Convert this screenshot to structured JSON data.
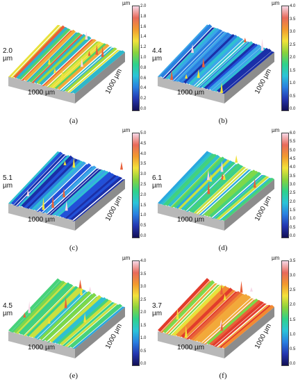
{
  "panels": [
    {
      "caption": "(a)",
      "z_label": "2.0\nµm",
      "x_label": "1000 µm",
      "y_label": "1000 µm",
      "unit": "µm",
      "scale_ticks": [
        "2.0",
        "1.8",
        "1.6",
        "1.4",
        "1.2",
        "1.0",
        "0.8",
        "0.6",
        "0.4",
        "0.2",
        "0.0"
      ],
      "palette": "greenyellow-red"
    },
    {
      "caption": "(b)",
      "z_label": "4.4\nµm",
      "x_label": "1000 µm",
      "y_label": "1000 µm",
      "unit": "µm",
      "scale_ticks": [
        "4.0",
        "3.5",
        "3.0",
        "2.5",
        "2.0",
        "1.5",
        "1.0",
        "0.5",
        "0.0"
      ],
      "palette": "blue"
    },
    {
      "caption": "(c)",
      "z_label": "5.1\nµm",
      "x_label": "1000 µm",
      "y_label": "1000 µm",
      "unit": "µm",
      "scale_ticks": [
        "5.0",
        "4.5",
        "4.0",
        "3.5",
        "3.0",
        "2.5",
        "2.0",
        "1.5",
        "1.0",
        "0.5",
        "0.0"
      ],
      "palette": "blue"
    },
    {
      "caption": "(d)",
      "z_label": "6.1\nµm",
      "x_label": "1000 µm",
      "y_label": "1000 µm",
      "unit": "µm",
      "scale_ticks": [
        "6.0",
        "5.5",
        "5.0",
        "4.5",
        "4.0",
        "3.5",
        "3.0",
        "2.5",
        "2.0",
        "1.5",
        "1.0",
        "0.5",
        "0.0"
      ],
      "palette": "green-cyan"
    },
    {
      "caption": "(e)",
      "z_label": "4.5\nµm",
      "x_label": "1000 µm",
      "y_label": "1000 µm",
      "unit": "µm",
      "scale_ticks": [
        "4.0",
        "3.5",
        "3.0",
        "2.5",
        "2.0",
        "1.5",
        "1.0",
        "0.5",
        "0.0"
      ],
      "palette": "green-cyan"
    },
    {
      "caption": "(f)",
      "z_label": "3.7\nµm",
      "x_label": "1000 µm",
      "y_label": "1000 µm",
      "unit": "µm",
      "scale_ticks": [
        "3.5",
        "3.0",
        "2.5",
        "2.0",
        "1.5",
        "1.0",
        "0.5",
        "0.0"
      ],
      "palette": "orange-green"
    }
  ],
  "colors": {
    "scale_gradient": [
      "#f6d7e6",
      "#e86a5a",
      "#f29a2e",
      "#f2e23a",
      "#8ad33c",
      "#2fd28a",
      "#2bc4d8",
      "#2a7fe0",
      "#2436b0",
      "#130f55"
    ],
    "base_gray": "#b8b8b8",
    "base_dark": "#8c8c8c"
  }
}
